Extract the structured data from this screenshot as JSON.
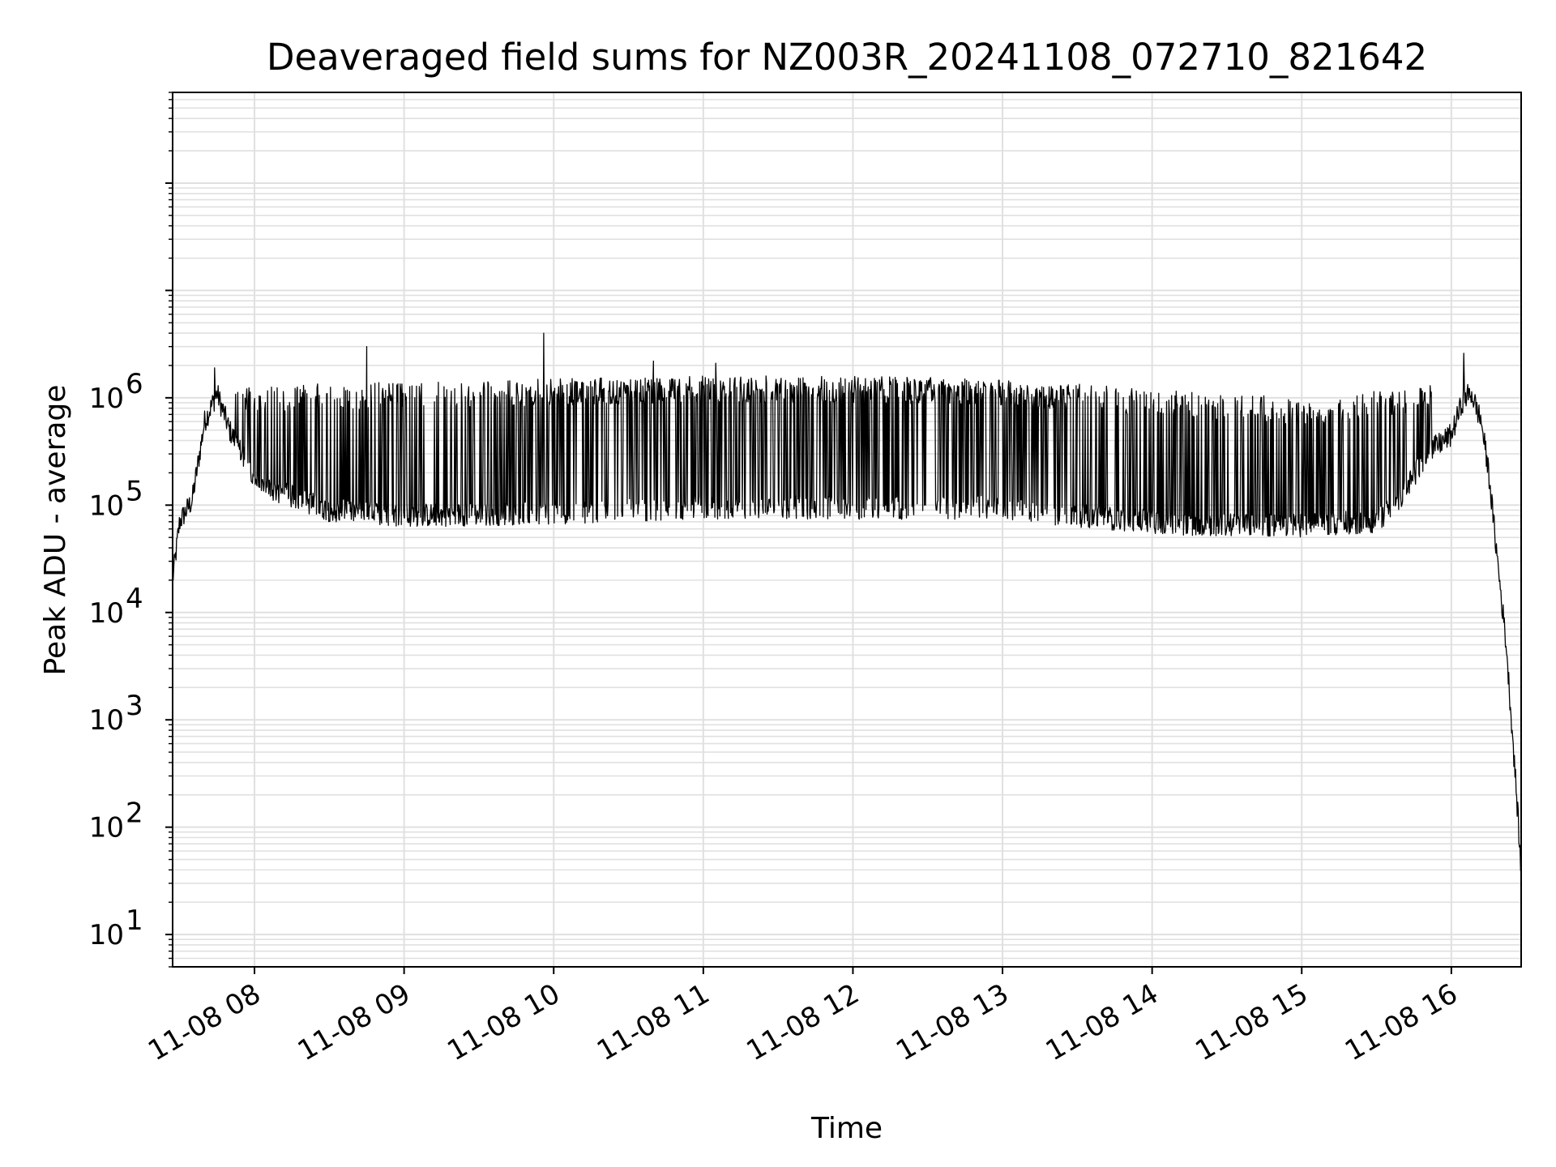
{
  "chart_data": {
    "type": "line",
    "title": "Deaveraged field sums for NZ003R_20241108_072710_821642",
    "xlabel": "Time",
    "ylabel": "Peak ADU - average",
    "yscale": "log",
    "grid": true,
    "legend": "none",
    "line_color": "#000000",
    "grid_color": "#e0e0e0",
    "xlim": [
      "2024-11-08 07:27:10",
      "2024-11-08 16:28:00"
    ],
    "ylim": [
      5,
      700000000
    ],
    "x_ticks": [
      {
        "value": "2024-11-08 08:00",
        "label": "11-08 08"
      },
      {
        "value": "2024-11-08 09:00",
        "label": "11-08 09"
      },
      {
        "value": "2024-11-08 10:00",
        "label": "11-08 10"
      },
      {
        "value": "2024-11-08 11:00",
        "label": "11-08 11"
      },
      {
        "value": "2024-11-08 12:00",
        "label": "11-08 12"
      },
      {
        "value": "2024-11-08 13:00",
        "label": "11-08 13"
      },
      {
        "value": "2024-11-08 14:00",
        "label": "11-08 14"
      },
      {
        "value": "2024-11-08 15:00",
        "label": "11-08 15"
      },
      {
        "value": "2024-11-08 16:00",
        "label": "11-08 16"
      }
    ],
    "y_ticks": [
      {
        "value": 10,
        "base": "10",
        "exp": "1"
      },
      {
        "value": 100,
        "base": "10",
        "exp": "2"
      },
      {
        "value": 1000,
        "base": "10",
        "exp": "3"
      },
      {
        "value": 10000,
        "base": "10",
        "exp": "4"
      },
      {
        "value": 100000,
        "base": "10",
        "exp": "5"
      },
      {
        "value": 1000000,
        "base": "10",
        "exp": "6"
      }
    ],
    "series": [
      {
        "baseline_points": [
          [
            "2024-11-08 07:27:10",
            20000
          ],
          [
            "2024-11-08 07:30",
            70000
          ],
          [
            "2024-11-08 07:35",
            110000
          ],
          [
            "2024-11-08 07:40",
            600000
          ],
          [
            "2024-11-08 07:45",
            1100000
          ],
          [
            "2024-11-08 07:50",
            500000
          ],
          [
            "2024-11-08 07:55",
            300000
          ],
          [
            "2024-11-08 08:00",
            160000
          ],
          [
            "2024-11-08 08:15",
            120000
          ],
          [
            "2024-11-08 08:30",
            90000
          ],
          [
            "2024-11-08 09:00",
            80000
          ],
          [
            "2024-11-08 10:00",
            85000
          ],
          [
            "2024-11-08 11:00",
            95000
          ],
          [
            "2024-11-08 12:00",
            95000
          ],
          [
            "2024-11-08 13:00",
            95000
          ],
          [
            "2024-11-08 13:30",
            80000
          ],
          [
            "2024-11-08 14:00",
            70000
          ],
          [
            "2024-11-08 14:30",
            65000
          ],
          [
            "2024-11-08 15:00",
            65000
          ],
          [
            "2024-11-08 15:30",
            70000
          ],
          [
            "2024-11-08 15:40",
            120000
          ],
          [
            "2024-11-08 15:50",
            300000
          ],
          [
            "2024-11-08 16:00",
            450000
          ],
          [
            "2024-11-08 16:05",
            1000000
          ],
          [
            "2024-11-08 16:08",
            1100000
          ],
          [
            "2024-11-08 16:12",
            600000
          ],
          [
            "2024-11-08 16:15",
            200000
          ],
          [
            "2024-11-08 16:18",
            40000
          ],
          [
            "2024-11-08 16:22",
            5000
          ],
          [
            "2024-11-08 16:25",
            500
          ],
          [
            "2024-11-08 16:27",
            100
          ],
          [
            "2024-11-08 16:28",
            35
          ]
        ],
        "spike_ceiling": [
          [
            "2024-11-08 07:52",
            1300000
          ],
          [
            "2024-11-08 10:00",
            1500000
          ],
          [
            "2024-11-08 11:00",
            1600000
          ],
          [
            "2024-11-08 12:00",
            1600000
          ],
          [
            "2024-11-08 13:00",
            1500000
          ],
          [
            "2024-11-08 14:00",
            1200000
          ],
          [
            "2024-11-08 15:00",
            1000000
          ],
          [
            "2024-11-08 15:50",
            1300000
          ]
        ],
        "notable_peaks": [
          [
            "2024-11-08 07:44",
            1900000
          ],
          [
            "2024-11-08 08:45",
            3000000
          ],
          [
            "2024-11-08 09:56",
            4000000
          ],
          [
            "2024-11-08 10:40",
            2200000
          ],
          [
            "2024-11-08 11:05",
            2100000
          ],
          [
            "2024-11-08 16:05",
            2600000
          ]
        ]
      }
    ]
  }
}
